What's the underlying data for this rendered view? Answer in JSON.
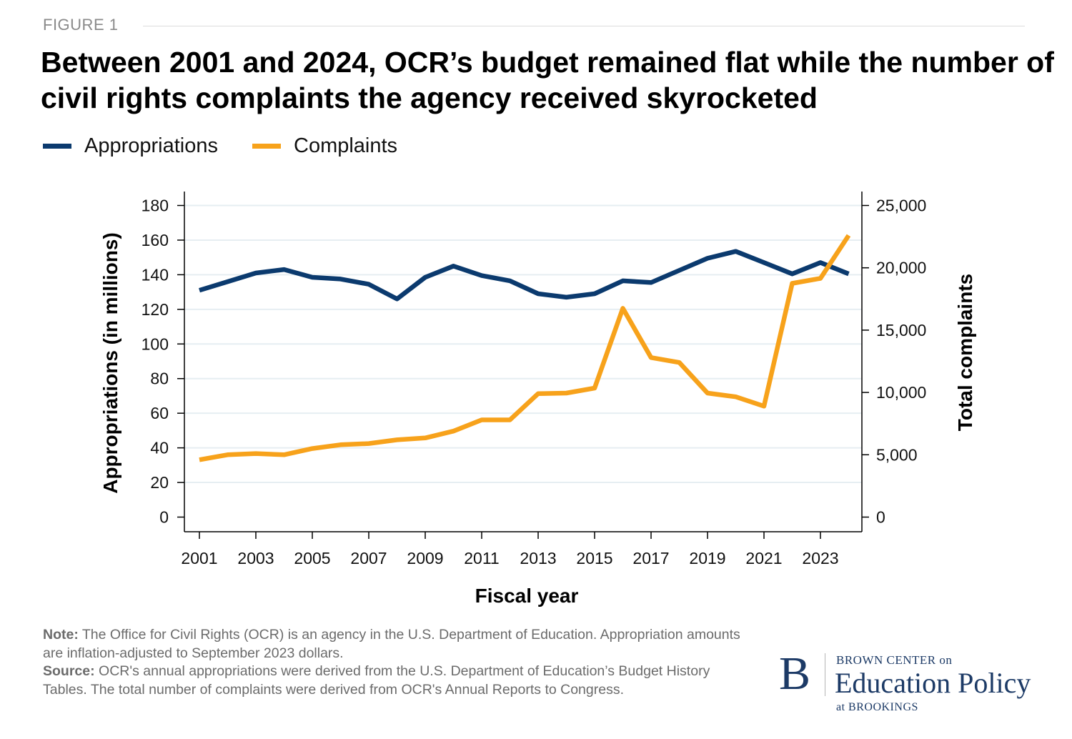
{
  "figure_label": "FIGURE 1",
  "chart_data": {
    "type": "line",
    "title": "Between 2001 and 2024, OCR’s budget remained flat while the number of civil rights complaints the agency received skyrocketed",
    "xlabel": "Fiscal year",
    "ylabel_left": "Appropriations (in millions)",
    "ylabel_right": "Total complaints",
    "x": [
      2001,
      2002,
      2003,
      2004,
      2005,
      2006,
      2007,
      2008,
      2009,
      2010,
      2011,
      2012,
      2013,
      2014,
      2015,
      2016,
      2017,
      2018,
      2019,
      2020,
      2021,
      2022,
      2023,
      2024
    ],
    "x_tick_labels": [
      "2001",
      "2003",
      "2005",
      "2007",
      "2009",
      "2011",
      "2013",
      "2015",
      "2017",
      "2019",
      "2021",
      "2023"
    ],
    "ylim_left": [
      0,
      180
    ],
    "y_ticks_left": [
      "0",
      "20",
      "40",
      "60",
      "80",
      "100",
      "120",
      "140",
      "160",
      "180"
    ],
    "ylim_right": [
      0,
      25000
    ],
    "y_ticks_right": [
      "0",
      "5,000",
      "10,000",
      "15,000",
      "20,000",
      "25,000"
    ],
    "grid": true,
    "series": [
      {
        "name": "Appropriations",
        "axis": "left",
        "color": "#0b3a6e",
        "values": [
          131,
          136,
          141,
          143,
          138.5,
          137.5,
          134.5,
          126,
          138.5,
          145,
          139.5,
          136.5,
          129,
          127,
          129,
          136.5,
          135.5,
          142.5,
          149.5,
          153.5,
          147,
          140.5,
          147,
          140.5
        ]
      },
      {
        "name": "Complaints",
        "axis": "right",
        "color": "#f7a21b",
        "values": [
          4600,
          5000,
          5100,
          5000,
          5500,
          5800,
          5900,
          6200,
          6350,
          6900,
          7800,
          7800,
          9900,
          9950,
          10350,
          16750,
          12800,
          12400,
          9950,
          9650,
          8900,
          18750,
          19150,
          22600
        ]
      }
    ]
  },
  "legend": {
    "items": [
      {
        "label": "Appropriations",
        "color": "#0b3a6e"
      },
      {
        "label": "Complaints",
        "color": "#f7a21b"
      }
    ]
  },
  "notes": {
    "note_label": "Note:",
    "note_text": " The Office for Civil Rights (OCR) is an agency in the U.S. Department of Education. Appropriation amounts are inflation-adjusted to September 2023 dollars.",
    "source_label": "Source:",
    "source_text": " OCR's annual appropriations were derived from the U.S. Department of Education’s Budget History Tables. The total number of complaints were derived from OCR's Annual Reports to Congress."
  },
  "logo": {
    "letter": "B",
    "line1": "BROWN CENTER on",
    "line2": "Education Policy",
    "line3": "at BROOKINGS"
  }
}
